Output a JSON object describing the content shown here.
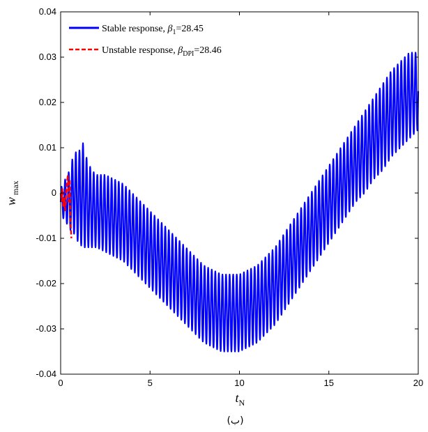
{
  "chart_data": {
    "type": "line",
    "xlabel": {
      "var": "t",
      "sub": "N"
    },
    "ylabel": {
      "var": "w",
      "sub": "max"
    },
    "xlim": [
      0,
      20
    ],
    "ylim": [
      -0.04,
      0.04
    ],
    "xticks": [
      "0",
      "5",
      "10",
      "15",
      "20"
    ],
    "yticks": [
      "0.04",
      "0.03",
      "0.02",
      "0.01",
      "0",
      "-0.01",
      "-0.02",
      "-0.03",
      "-0.04"
    ],
    "grid": false,
    "legend_position": "top-left",
    "caption": "(ب)",
    "series": [
      {
        "name": "Stable response, β1=28.45",
        "legend": {
          "prefix": "Stable response, ",
          "symbol": "β",
          "sub": "1",
          "suffix": "=28.45"
        },
        "color": "#0000ff",
        "style": "solid",
        "x": [
          0,
          0.25,
          0.5,
          0.75,
          1,
          1.25,
          1.5,
          1.75,
          2,
          2.5,
          3,
          3.5,
          4,
          4.5,
          5,
          5.5,
          6,
          6.5,
          7,
          7.5,
          8,
          8.5,
          9,
          9.5,
          10,
          10.5,
          11,
          11.5,
          12,
          12.5,
          13,
          13.5,
          14,
          14.5,
          15,
          15.5,
          16,
          16.5,
          17,
          17.5,
          18,
          18.5,
          19,
          19.5,
          20
        ],
        "y_upper": [
          0.001,
          0.003,
          0.005,
          0.009,
          0.009,
          0.011,
          0.007,
          0.005,
          0.004,
          0.004,
          0.003,
          0.002,
          0.0,
          -0.002,
          -0.004,
          -0.006,
          -0.008,
          -0.01,
          -0.012,
          -0.014,
          -0.016,
          -0.017,
          -0.018,
          -0.018,
          -0.018,
          -0.017,
          -0.016,
          -0.014,
          -0.012,
          -0.009,
          -0.006,
          -0.003,
          0.0,
          0.003,
          0.006,
          0.009,
          0.012,
          0.015,
          0.018,
          0.021,
          0.024,
          0.027,
          0.029,
          0.031,
          0.031
        ],
        "y_lower": [
          -0.005,
          -0.006,
          -0.008,
          -0.009,
          -0.011,
          -0.012,
          -0.012,
          -0.012,
          -0.012,
          -0.013,
          -0.014,
          -0.015,
          -0.017,
          -0.019,
          -0.021,
          -0.023,
          -0.025,
          -0.027,
          -0.029,
          -0.031,
          -0.033,
          -0.034,
          -0.035,
          -0.035,
          -0.035,
          -0.034,
          -0.033,
          -0.031,
          -0.029,
          -0.026,
          -0.023,
          -0.02,
          -0.017,
          -0.014,
          -0.011,
          -0.008,
          -0.005,
          -0.002,
          0.0,
          0.003,
          0.005,
          0.008,
          0.01,
          0.012,
          0.014
        ]
      },
      {
        "name": "Unstable response, βDPI=28.46",
        "legend": {
          "prefix": "Unstable response, ",
          "symbol": "β",
          "sub": "DPI",
          "suffix": "=28.46"
        },
        "color": "#ff0000",
        "style": "dashed",
        "x": [
          0,
          0.05,
          0.1,
          0.15,
          0.2,
          0.25,
          0.3,
          0.35,
          0.4,
          0.45,
          0.5,
          0.55,
          0.6
        ],
        "y": [
          0,
          -0.002,
          0.001,
          -0.003,
          -0.001,
          -0.004,
          0.0,
          0.002,
          0.004,
          -0.002,
          0.003,
          -0.006,
          -0.01
        ]
      }
    ]
  }
}
